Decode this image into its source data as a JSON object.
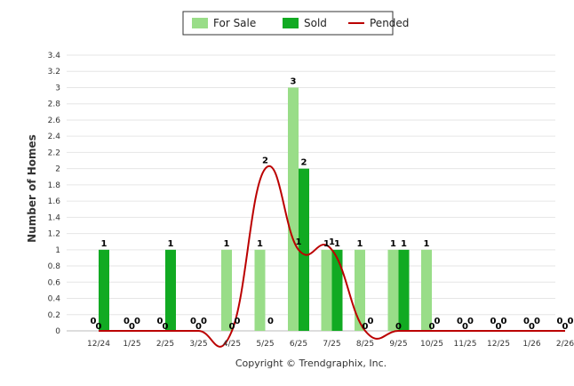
{
  "chart_data": {
    "type": "bar",
    "categories": [
      "12/24",
      "1/25",
      "2/25",
      "3/25",
      "4/25",
      "5/25",
      "6/25",
      "7/25",
      "8/25",
      "9/25",
      "10/25",
      "11/25",
      "12/25",
      "1/26",
      "2/26"
    ],
    "series": [
      {
        "name": "For Sale",
        "kind": "bar",
        "color": "#99dd88",
        "values": [
          0,
          0,
          0,
          0,
          1,
          1,
          3,
          1,
          1,
          1,
          1,
          0,
          0,
          0,
          0
        ]
      },
      {
        "name": "Sold",
        "kind": "bar",
        "color": "#11aa22",
        "values": [
          1,
          0,
          1,
          0,
          0,
          0,
          2,
          1,
          0,
          1,
          0,
          0,
          0,
          0,
          0
        ]
      },
      {
        "name": "Pended",
        "kind": "line",
        "color": "#bb0000",
        "values": [
          0,
          0,
          0,
          0,
          0,
          2,
          1,
          1,
          0,
          0,
          0,
          0,
          0,
          0,
          0
        ]
      }
    ],
    "ylabel": "Number of Homes",
    "xlabel": "",
    "ylim": [
      0,
      3.4
    ],
    "yticks": [
      "0",
      "0.2",
      "0.4",
      "0.6",
      "0.8",
      "1",
      "1.2",
      "1.4",
      "1.6",
      "1.8",
      "2",
      "2.2",
      "2.4",
      "2.6",
      "2.8",
      "3",
      "3.2",
      "3.4"
    ],
    "grid": true,
    "legend_position": "top-center"
  },
  "credit": "Copyright © Trendgraphix, Inc."
}
